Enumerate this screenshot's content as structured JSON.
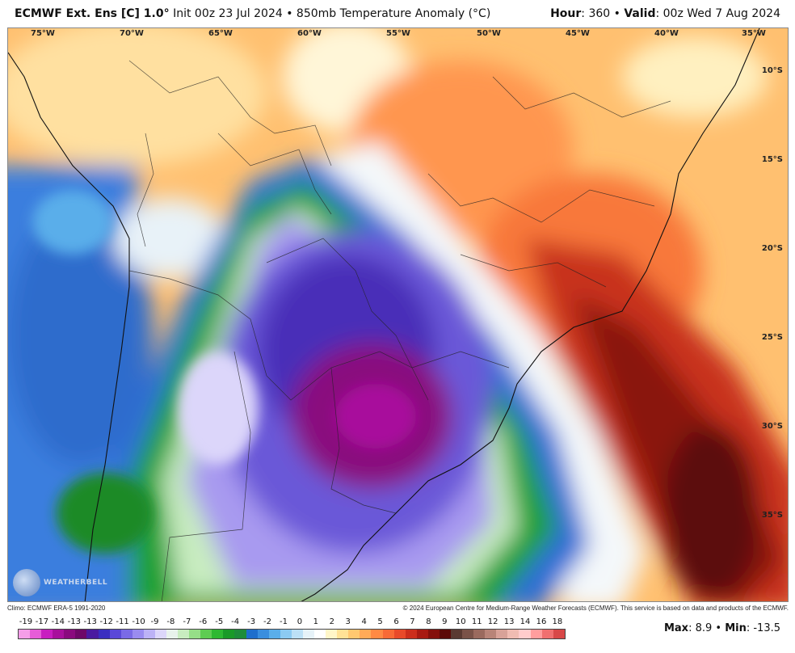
{
  "header": {
    "model": "ECMWF Ext. Ens [C] 1.0",
    "degree": "°",
    "init": " Init 00z 23 Jul 2024 • 850mb Temperature Anomaly (°C)",
    "hour_label": "Hour",
    "hour_value": ": 360 • ",
    "valid_label": "Valid",
    "valid_value": ": 00z Wed 7 Aug 2024"
  },
  "map": {
    "lon_labels": [
      "75°W",
      "70°W",
      "65°W",
      "60°W",
      "55°W",
      "50°W",
      "45°W",
      "40°W",
      "35°W"
    ],
    "lat_labels": [
      "10°S",
      "15°S",
      "20°S",
      "25°S",
      "30°S",
      "35°S"
    ],
    "watermark": "WEATHERBELL"
  },
  "footer": {
    "climo": "Climo: ECMWF ERA-5 1991-2020",
    "copyright": "© 2024 European Centre for Medium-Range Weather Forecasts (ECMWF). This service is based on data and products of the ECMWF."
  },
  "colorbar": {
    "ticks": [
      "-19",
      "-17",
      "-14",
      "-13",
      "-13",
      "-12",
      "-11",
      "-10",
      "-9",
      "-8",
      "-7",
      "-6",
      "-5",
      "-4",
      "-3",
      "-2",
      "-1",
      "0",
      "1",
      "2",
      "3",
      "4",
      "5",
      "6",
      "7",
      "8",
      "9",
      "10",
      "11",
      "12",
      "13",
      "14",
      "16",
      "18"
    ],
    "colors": [
      "#f59ee8",
      "#e65cd8",
      "#c81ec0",
      "#a8109c",
      "#8a0a7e",
      "#6e0868",
      "#4a1aa0",
      "#3a2ec0",
      "#5a48d8",
      "#7a6ae6",
      "#9a8cf0",
      "#bcb2f6",
      "#dcd6fa",
      "#e8f2ec",
      "#c8ecc0",
      "#96de88",
      "#5ecc52",
      "#2eb832",
      "#1a9a28",
      "#1e8c3a",
      "#1e6ecc",
      "#3a8ede",
      "#5aaeea",
      "#8ccaf2",
      "#bce0f6",
      "#e6f2f8",
      "#ffffff",
      "#fff6c8",
      "#ffe296",
      "#ffc870",
      "#ffaa58",
      "#ff8a44",
      "#f86a36",
      "#e84a2a",
      "#cc2e1c",
      "#a81a12",
      "#84100c",
      "#5c0a08",
      "#5a3a32",
      "#7a5248",
      "#9a6a5e",
      "#b88478",
      "#d8a298",
      "#f0bcb2",
      "#ffcccc",
      "#ff9e9e",
      "#f07070",
      "#d84848"
    ]
  },
  "stats": {
    "max_label": "Max",
    "max_value": ": 8.9 • ",
    "min_label": "Min",
    "min_value": ": -13.5"
  }
}
